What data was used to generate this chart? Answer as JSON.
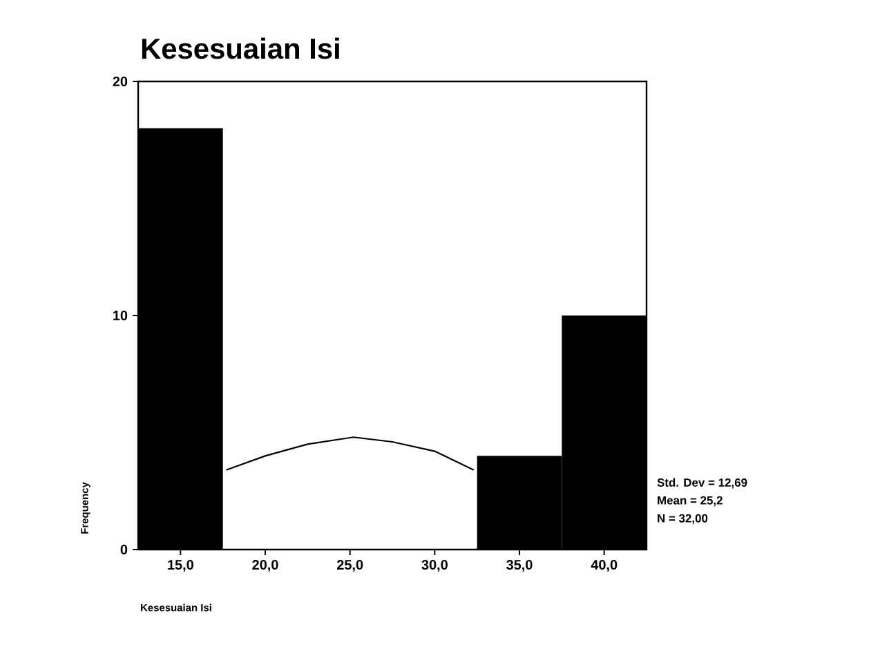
{
  "chart_data": {
    "type": "histogram",
    "title": "Kesesuaian Isi",
    "xlabel": "Kesesuaian Isi",
    "ylabel": "Frequency",
    "series": [
      {
        "bins": [
          12.5,
          17.5,
          22.5,
          27.5,
          32.5,
          37.5,
          42.5
        ],
        "values": [
          18,
          0,
          0,
          0,
          4,
          10
        ],
        "color": "#000000"
      },
      {
        "type": "line",
        "x": [
          17.7,
          20,
          22.5,
          25.2,
          27.5,
          30,
          32.3
        ],
        "values": [
          3.4,
          4.0,
          4.5,
          4.8,
          4.6,
          4.2,
          3.4
        ],
        "color": "#000000"
      }
    ],
    "xlim": [
      12.5,
      42.5
    ],
    "ylim": [
      0,
      20
    ],
    "xticks": [
      {
        "value": 15,
        "label": "15,0"
      },
      {
        "value": 20,
        "label": "20,0"
      },
      {
        "value": 25,
        "label": "25,0"
      },
      {
        "value": 30,
        "label": "30,0"
      },
      {
        "value": 35,
        "label": "35,0"
      },
      {
        "value": 40,
        "label": "40,0"
      }
    ],
    "yticks": [
      0,
      10,
      20
    ],
    "annotations": [
      "Std. Dev = 12,69",
      "Mean = 25,2",
      "N = 32,00"
    ]
  }
}
